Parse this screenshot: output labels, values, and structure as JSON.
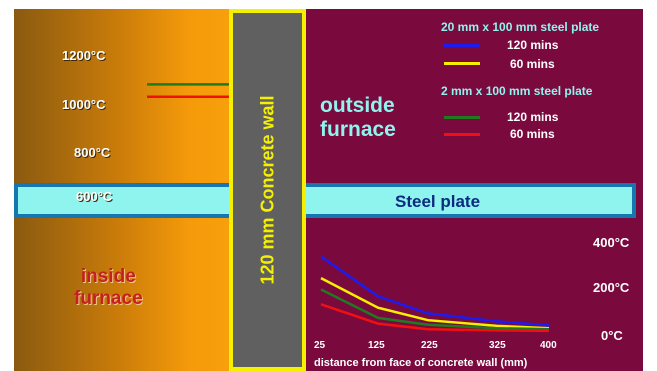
{
  "labels": {
    "wall": "120 mm Concrete wall",
    "outside": "outside furnace",
    "outside_line1": "outside",
    "outside_line2": "furnace",
    "inside_line1": "inside",
    "inside_line2": "furnace",
    "steel": "Steel plate",
    "xaxis": "distance from face of concrete wall (mm)"
  },
  "furnace_temps": [
    "1200°C",
    "1000°C",
    "800°C",
    "600°C"
  ],
  "legend": {
    "group1": "20 mm x 100 mm steel plate",
    "group2": "2 mm x 100 mm steel plate",
    "items": [
      {
        "label": "120 mins",
        "color": "#1c1cf0"
      },
      {
        "label": "60 mins",
        "color": "#f5f000"
      },
      {
        "label": "120 mins",
        "color": "#207a20"
      },
      {
        "label": "60 mins",
        "color": "#f01010"
      }
    ]
  },
  "chart_data": {
    "type": "line",
    "x": [
      25,
      125,
      225,
      325,
      400
    ],
    "xlabel": "distance from face of concrete wall (mm)",
    "ytick_labels": [
      "400°C",
      "200°C",
      "0°C"
    ],
    "ylim": [
      0,
      400
    ],
    "series": [
      {
        "name": "20 mm x 100 mm steel plate, 120 mins",
        "color": "#1c1cf0",
        "values": [
          345,
          170,
          95,
          60,
          42
        ]
      },
      {
        "name": "20 mm x 100 mm steel plate, 60 mins",
        "color": "#f5f000",
        "values": [
          250,
          120,
          65,
          40,
          30
        ]
      },
      {
        "name": "2 mm x 100 mm steel plate, 120 mins",
        "color": "#207a20",
        "values": [
          200,
          75,
          45,
          30,
          25
        ]
      },
      {
        "name": "2 mm x 100 mm steel plate, 60 mins",
        "color": "#f01010",
        "values": [
          135,
          50,
          25,
          20,
          18
        ]
      }
    ],
    "left_marks": [
      {
        "color": "#207a20",
        "temp": 1080
      },
      {
        "color": "#f01010",
        "temp": 1030
      }
    ]
  }
}
